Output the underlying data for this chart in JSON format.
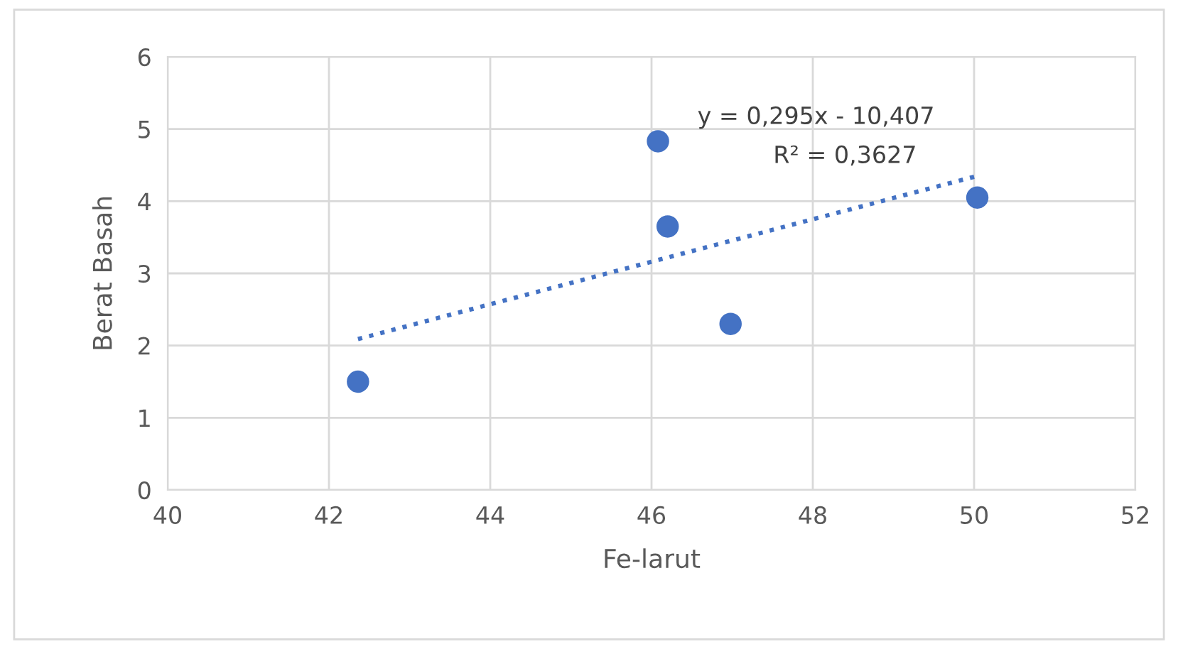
{
  "chart_data": {
    "type": "scatter",
    "xlabel": "Fe-larut",
    "ylabel": "Berat Basah",
    "series": [
      {
        "type": "scatter",
        "color": "#4472c4",
        "x": [
          42.36,
          46.08,
          46.2,
          46.98,
          50.04
        ],
        "values": [
          1.5,
          4.83,
          3.65,
          2.3,
          4.05
        ],
        "marker": "circle"
      },
      {
        "type": "line",
        "color": "#4472c4",
        "x": [
          42.36,
          50.04
        ],
        "values": [
          2.09,
          4.35
        ],
        "line_style": "dotted",
        "marker": "none"
      }
    ],
    "annotations": [
      "y = 0,295x - 10,407",
      "R² = 0,3627"
    ],
    "xlim": [
      40,
      52
    ],
    "xticks": [
      40,
      42,
      44,
      46,
      48,
      50,
      52
    ],
    "ylim": [
      0,
      6
    ],
    "yticks": [
      0,
      1,
      2,
      3,
      4,
      5,
      6
    ],
    "grid": true
  }
}
